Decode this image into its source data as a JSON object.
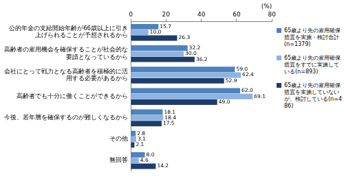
{
  "chart_data": {
    "type": "bar",
    "orientation": "horizontal",
    "xlabel": "(%)",
    "categories": [
      "公的年金の支給開始年齢が66歳以上に引き上げられることが予想されるから",
      "高齢者の雇用機会を確保することが社会的な要請となっているから",
      "会社にとって戦力となる高齢者を積極的に活用する必要があるから",
      "高齢者でも十分に働くことができるから",
      "今後、若年層を確保するのが難しくなるから",
      "その他",
      "無回答"
    ],
    "series": [
      {
        "name": "65歳より先の雇用確保措置を実施・検討合計(n=1379)",
        "color": "#4f81bd",
        "values": [
          15.7,
          32.2,
          59.0,
          62.0,
          18.1,
          2.8,
          8.0
        ],
        "value_labels": [
          "15.7",
          "32.2",
          "59.0",
          "62.0",
          "18.1",
          "2.8",
          "8.0"
        ]
      },
      {
        "name": "65歳より先の雇用確保措置をすでに実施している(n=893)",
        "color": "#8db3e2",
        "values": [
          10.0,
          30.0,
          62.4,
          69.1,
          18.4,
          3.1,
          4.6
        ],
        "value_labels": [
          "10.0",
          "30.0",
          "62.4",
          "69.1",
          "18.4",
          "3.1",
          "4.6"
        ]
      },
      {
        "name": "65歳より先の雇用確保措置を実施していないが、検討している(n=486)",
        "color": "#1f3d6b",
        "values": [
          26.3,
          36.2,
          52.9,
          49.0,
          17.5,
          2.1,
          14.2
        ],
        "value_labels": [
          "26.3",
          "36.2",
          "52.9",
          "49.0",
          "17.5",
          "2.1",
          "14.2"
        ]
      }
    ],
    "xlim": [
      0,
      80
    ],
    "xticks": [
      0,
      20,
      40,
      60,
      80
    ],
    "grid": false,
    "legend": "right",
    "data_labels": true
  }
}
